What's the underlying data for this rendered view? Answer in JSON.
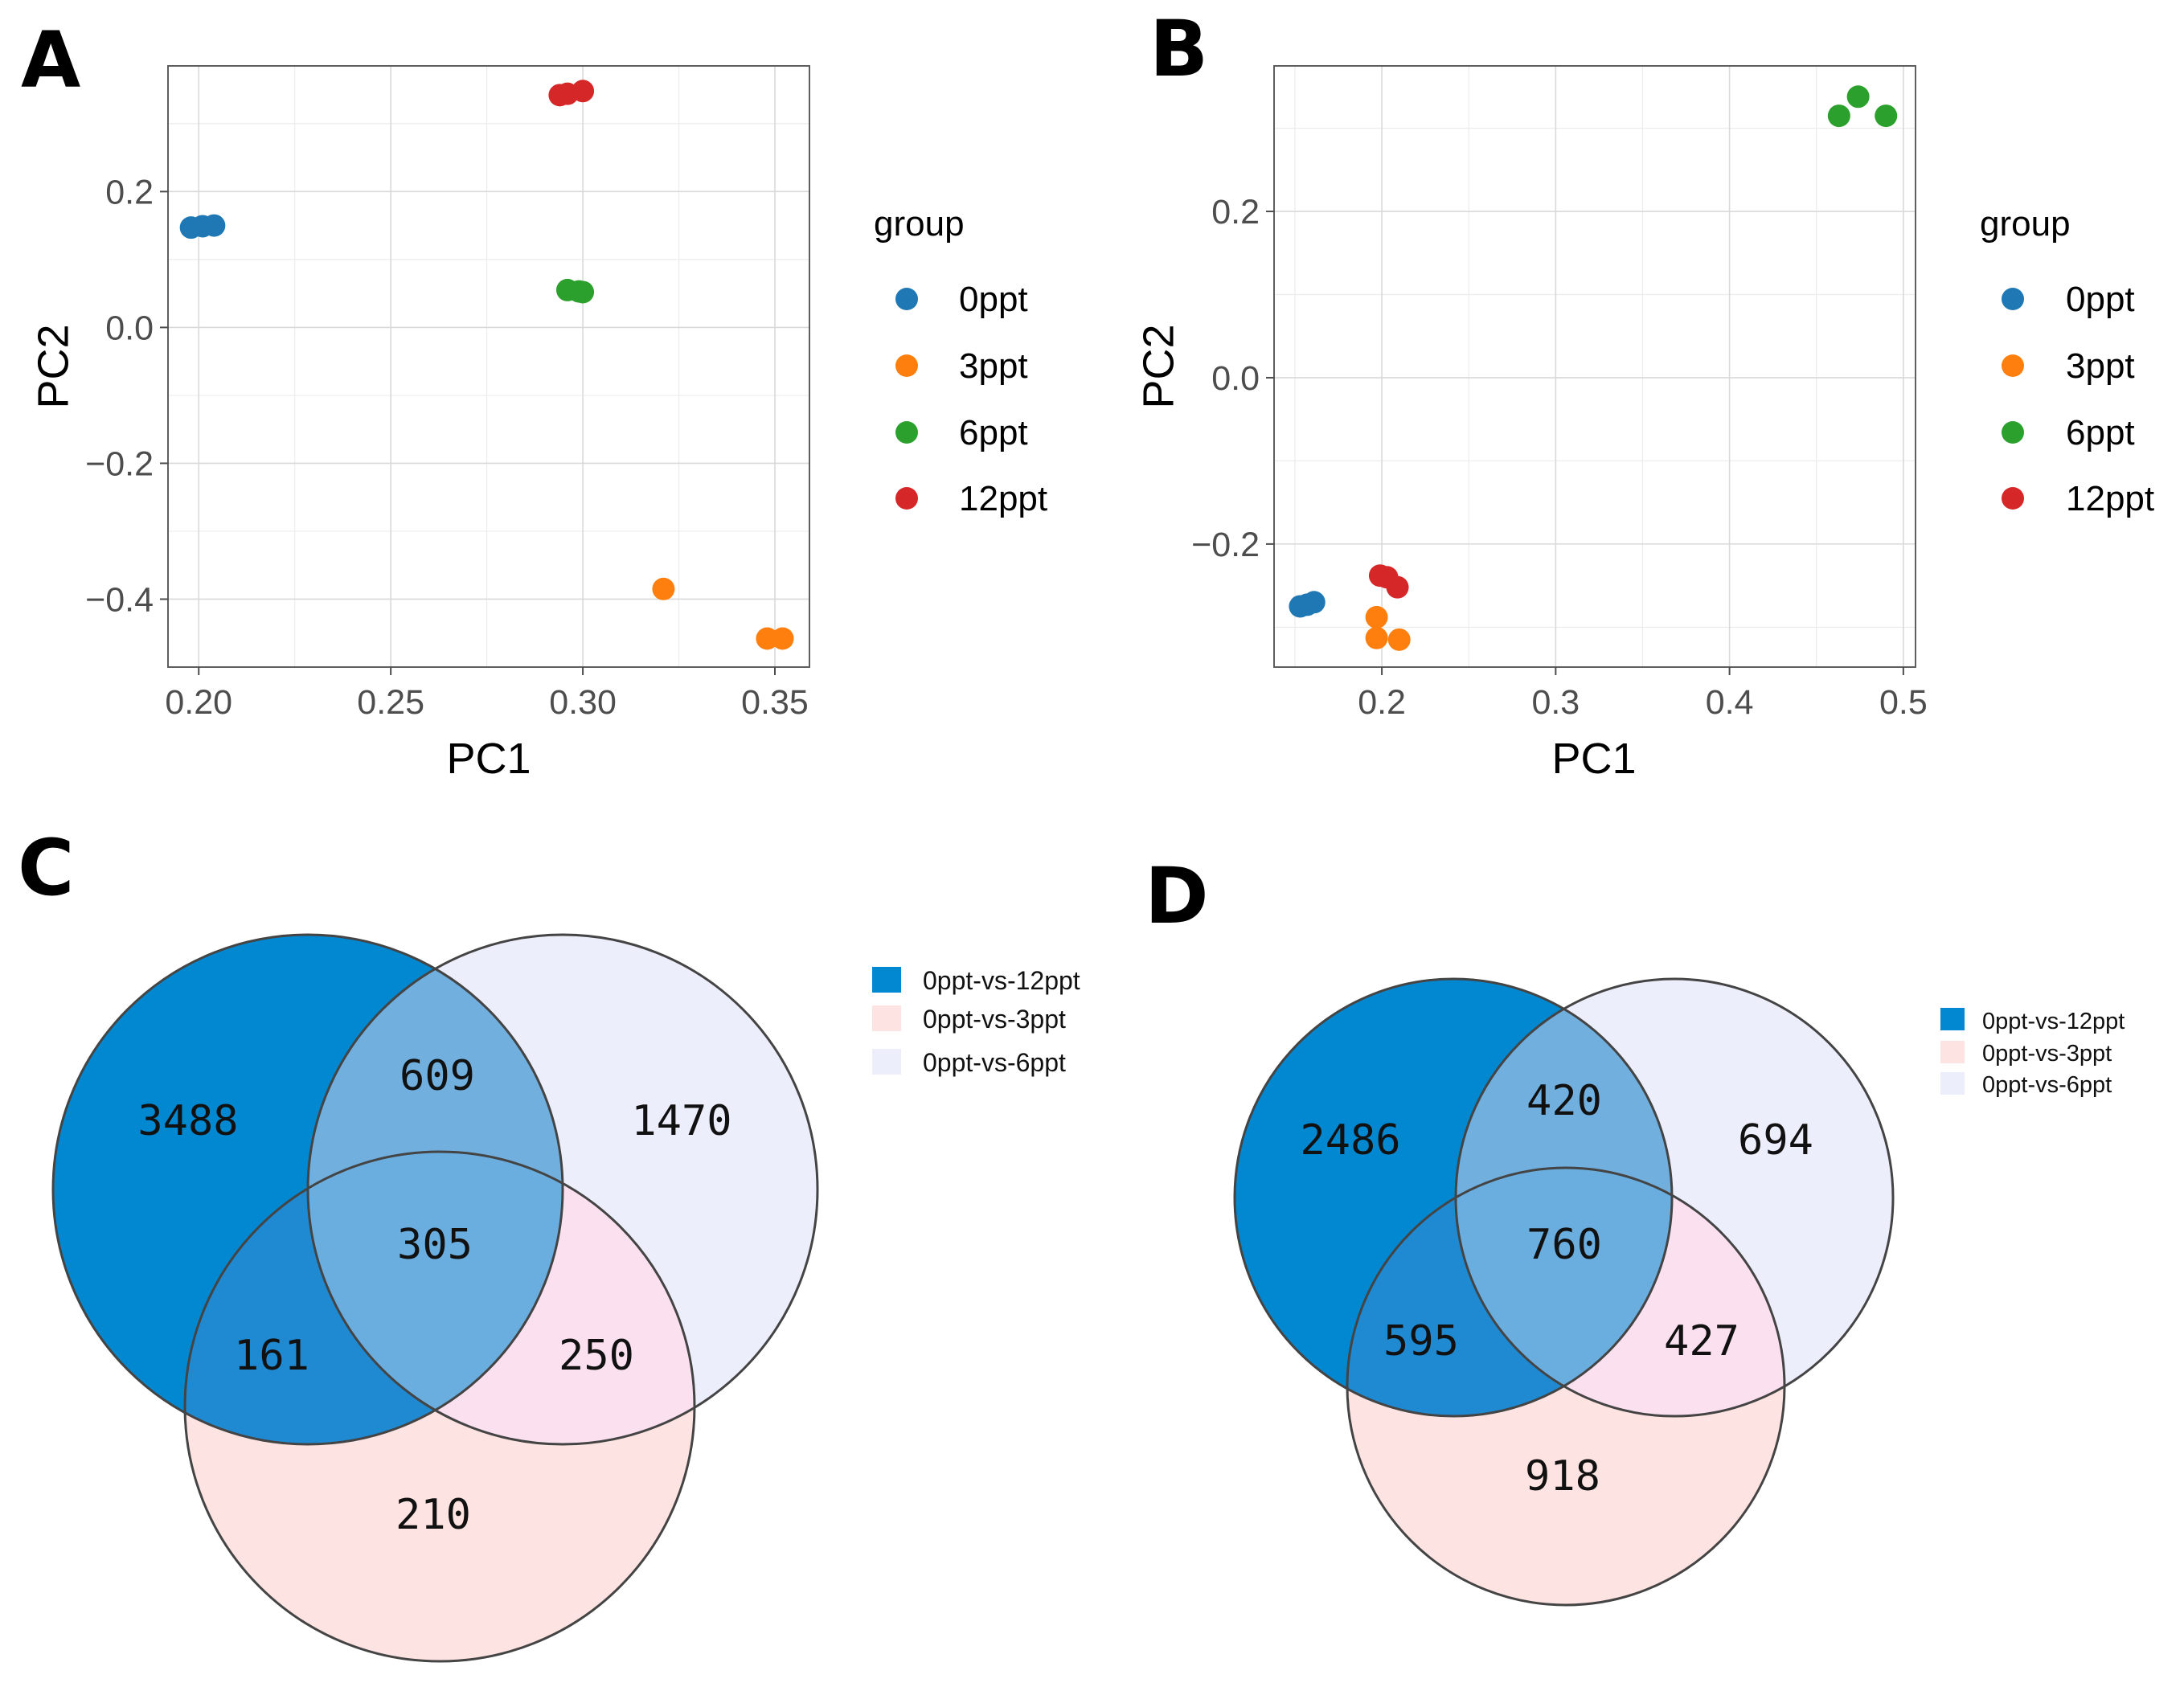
{
  "panels": {
    "A": {
      "letter": "A"
    },
    "B": {
      "letter": "B"
    },
    "C": {
      "letter": "C"
    },
    "D": {
      "letter": "D"
    }
  },
  "legend": {
    "title": "group",
    "items": [
      {
        "label": "0ppt",
        "color": "#1f77b4"
      },
      {
        "label": "3ppt",
        "color": "#ff7f0e"
      },
      {
        "label": "6ppt",
        "color": "#2ca02c"
      },
      {
        "label": "12ppt",
        "color": "#d62728"
      }
    ]
  },
  "chart_data": [
    {
      "id": "A",
      "type": "scatter",
      "title": "",
      "xlabel": "PC1",
      "ylabel": "PC2",
      "xlim": [
        0.192,
        0.359
      ],
      "ylim": [
        -0.5,
        0.385
      ],
      "xticks": [
        0.2,
        0.25,
        0.3,
        0.35
      ],
      "xtick_labels": [
        "0.20",
        "0.25",
        "0.30",
        "0.35"
      ],
      "yticks": [
        -0.4,
        -0.2,
        0.0,
        0.2
      ],
      "ytick_labels": [
        "−0.4",
        "−0.2",
        "0.0",
        "0.2"
      ],
      "series": [
        {
          "name": "0ppt",
          "points": [
            [
              0.198,
              0.147
            ],
            [
              0.201,
              0.149
            ],
            [
              0.204,
              0.15
            ]
          ]
        },
        {
          "name": "3ppt",
          "points": [
            [
              0.321,
              -0.385
            ],
            [
              0.348,
              -0.458
            ],
            [
              0.352,
              -0.458
            ]
          ]
        },
        {
          "name": "6ppt",
          "points": [
            [
              0.296,
              0.055
            ],
            [
              0.299,
              0.053
            ],
            [
              0.3,
              0.052
            ]
          ]
        },
        {
          "name": "12ppt",
          "points": [
            [
              0.294,
              0.342
            ],
            [
              0.296,
              0.344
            ],
            [
              0.3,
              0.348
            ]
          ]
        }
      ]
    },
    {
      "id": "B",
      "type": "scatter",
      "title": "",
      "xlabel": "PC1",
      "ylabel": "PC2",
      "xlim": [
        0.138,
        0.507
      ],
      "ylim": [
        -0.348,
        0.375
      ],
      "xticks": [
        0.2,
        0.3,
        0.4,
        0.5
      ],
      "xtick_labels": [
        "0.2",
        "0.3",
        "0.4",
        "0.5"
      ],
      "yticks": [
        -0.2,
        0.0,
        0.2
      ],
      "ytick_labels": [
        "−0.2",
        "0.0",
        "0.2"
      ],
      "series": [
        {
          "name": "0ppt",
          "points": [
            [
              0.153,
              -0.275
            ],
            [
              0.157,
              -0.273
            ],
            [
              0.161,
              -0.27
            ]
          ]
        },
        {
          "name": "3ppt",
          "points": [
            [
              0.197,
              -0.288
            ],
            [
              0.197,
              -0.313
            ],
            [
              0.21,
              -0.315
            ]
          ]
        },
        {
          "name": "6ppt",
          "points": [
            [
              0.463,
              0.315
            ],
            [
              0.474,
              0.338
            ],
            [
              0.49,
              0.315
            ]
          ]
        },
        {
          "name": "12ppt",
          "points": [
            [
              0.199,
              -0.238
            ],
            [
              0.203,
              -0.24
            ],
            [
              0.209,
              -0.252
            ]
          ]
        }
      ]
    },
    {
      "id": "C",
      "type": "venn",
      "sets": [
        {
          "name": "0ppt-vs-12ppt",
          "color": "#0288d1"
        },
        {
          "name": "0ppt-vs-3ppt",
          "color": "#fde3e1"
        },
        {
          "name": "0ppt-vs-6ppt",
          "color": "#edeefc"
        }
      ],
      "regions": {
        "only_12": "3488",
        "only_6": "1470",
        "only_3": "210",
        "12_and_6": "609",
        "12_and_3": "161",
        "6_and_3": "250",
        "all_three": "305"
      }
    },
    {
      "id": "D",
      "type": "venn",
      "sets": [
        {
          "name": "0ppt-vs-12ppt",
          "color": "#0288d1"
        },
        {
          "name": "0ppt-vs-3ppt",
          "color": "#fde3e1"
        },
        {
          "name": "0ppt-vs-6ppt",
          "color": "#edeefc"
        }
      ],
      "regions": {
        "only_12": "2486",
        "only_6": "694",
        "only_3": "918",
        "12_and_6": "420",
        "12_and_3": "595",
        "6_and_3": "427",
        "all_three": "760"
      }
    }
  ]
}
